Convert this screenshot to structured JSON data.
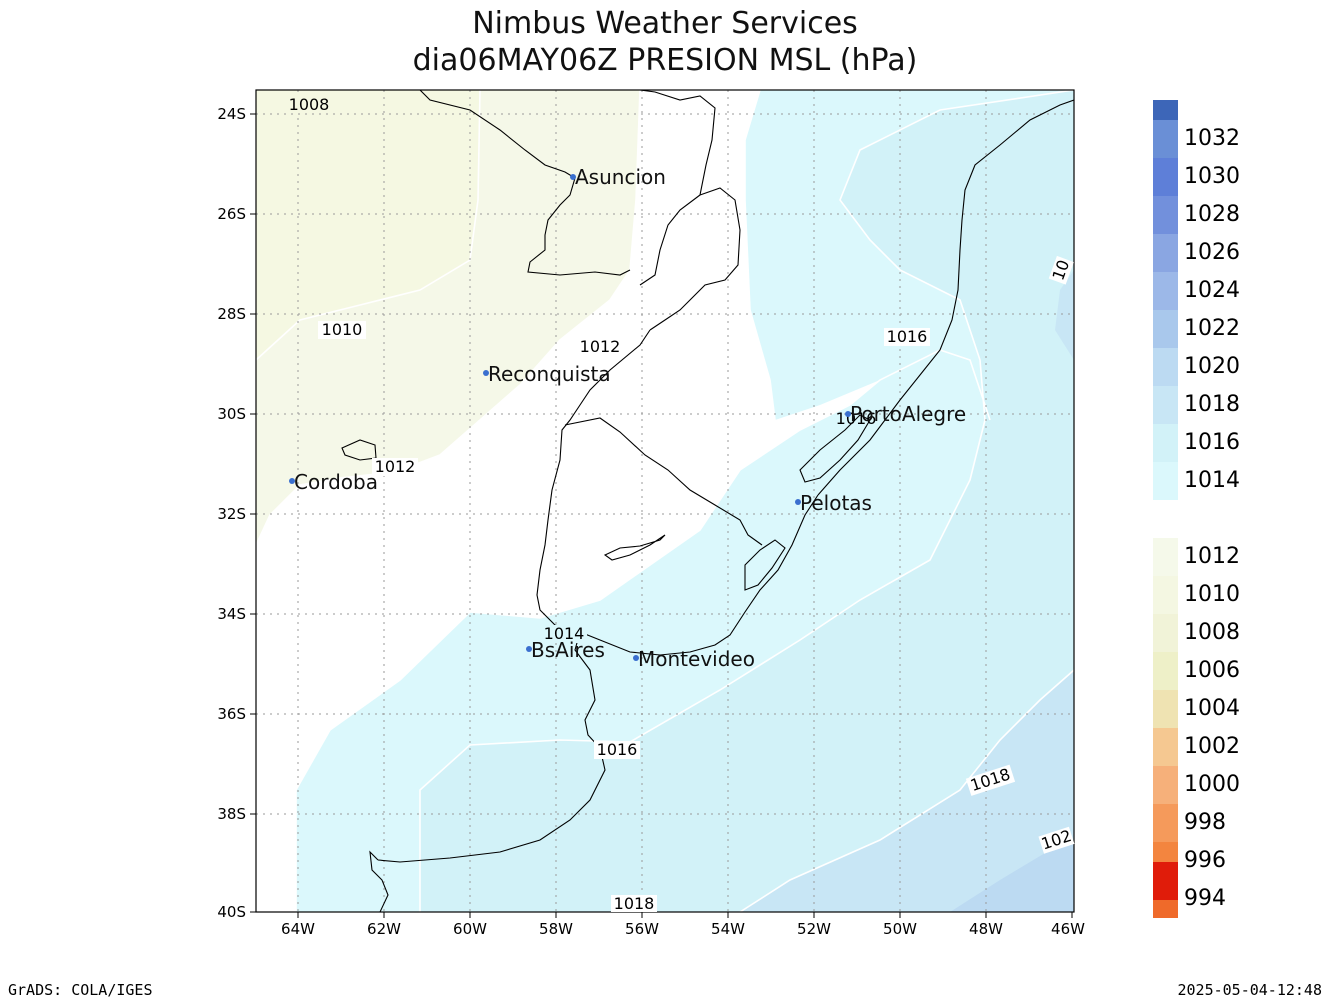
{
  "title": {
    "line1": "Nimbus Weather Services",
    "line2": "dia06MAY06Z PRESION MSL (hPa)"
  },
  "axes": {
    "y_ticks": [
      "24S",
      "26S",
      "28S",
      "30S",
      "32S",
      "34S",
      "36S",
      "38S",
      "40S"
    ],
    "x_ticks": [
      "64W",
      "62W",
      "60W",
      "58W",
      "56W",
      "54W",
      "52W",
      "50W",
      "48W",
      "46W"
    ]
  },
  "cities": [
    {
      "name": "Asuncion"
    },
    {
      "name": "Reconquista"
    },
    {
      "name": "Cordoba"
    },
    {
      "name": "PortoAlegre"
    },
    {
      "name": "Pelotas"
    },
    {
      "name": "BsAires"
    },
    {
      "name": "Montevideo"
    }
  ],
  "contour_labels": [
    "1008",
    "1010",
    "1012",
    "1012",
    "1014",
    "1016",
    "1016",
    "1016",
    "1018",
    "1018",
    "102",
    "10"
  ],
  "legend": {
    "items": [
      {
        "label": "1032",
        "color": "#6a8fd6"
      },
      {
        "label": "1030",
        "color": "#5e7fd8"
      },
      {
        "label": "1028",
        "color": "#7290dc"
      },
      {
        "label": "1026",
        "color": "#8aa6e2"
      },
      {
        "label": "1024",
        "color": "#9cb8e8"
      },
      {
        "label": "1022",
        "color": "#a9c8ec"
      },
      {
        "label": "1020",
        "color": "#bcdaf2"
      },
      {
        "label": "1018",
        "color": "#c8e6f5"
      },
      {
        "label": "1016",
        "color": "#d2f2f8"
      },
      {
        "label": "1014",
        "color": "#dbf8fc"
      },
      {
        "label": "1012",
        "color": "#f5f9ea"
      },
      {
        "label": "1010",
        "color": "#f4f7e2"
      },
      {
        "label": "1008",
        "color": "#f1f3d8"
      },
      {
        "label": "1006",
        "color": "#eef0c8"
      },
      {
        "label": "1004",
        "color": "#efe3b2"
      },
      {
        "label": "1002",
        "color": "#f5c891"
      },
      {
        "label": "1000",
        "color": "#f6b07a"
      },
      {
        "label": "998",
        "color": "#f59a5b"
      },
      {
        "label": "996",
        "color": "#f3853f"
      },
      {
        "label": "994",
        "color": "#ef6a2a"
      }
    ],
    "top_color": "#3d66b8",
    "bottom_color": "#e01c0a"
  },
  "footer": {
    "left": "GrADS: COLA/IGES",
    "right": "2025-05-04-12:48"
  }
}
